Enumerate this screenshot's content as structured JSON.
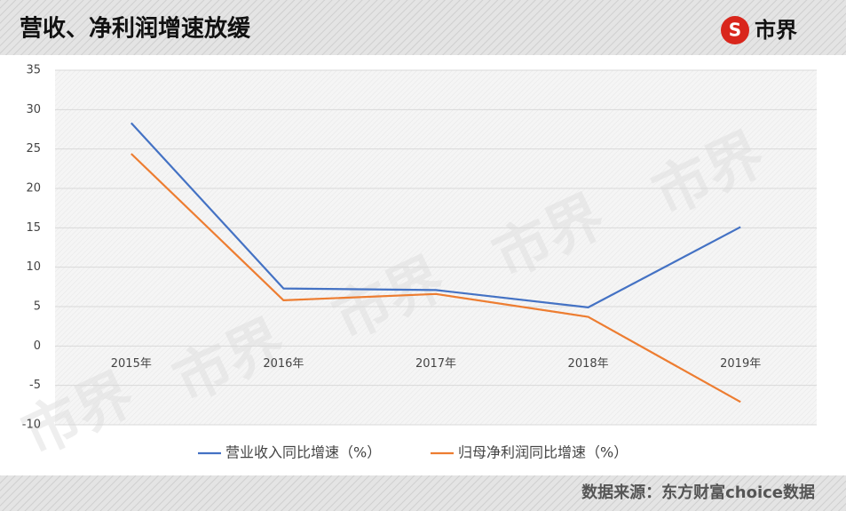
{
  "chart_data": {
    "type": "line",
    "title": "营收、净利润增速放缓",
    "brand": "市界",
    "watermark": "市界",
    "source": "数据来源：东方财富choice数据",
    "categories": [
      "2015年",
      "2016年",
      "2017年",
      "2018年",
      "2019年"
    ],
    "series": [
      {
        "name": "营业收入同比增速（%）",
        "color": "#4472c4",
        "values": [
          28.3,
          7.3,
          7.1,
          4.9,
          15.1
        ]
      },
      {
        "name": "归母净利润同比增速（%）",
        "color": "#ed7d31",
        "values": [
          24.4,
          5.8,
          6.6,
          3.7,
          -7.1
        ]
      }
    ],
    "ylim": [
      -10,
      35
    ],
    "yticks": [
      -10,
      -5,
      0,
      5,
      10,
      15,
      20,
      25,
      30,
      35
    ],
    "grid": true
  }
}
